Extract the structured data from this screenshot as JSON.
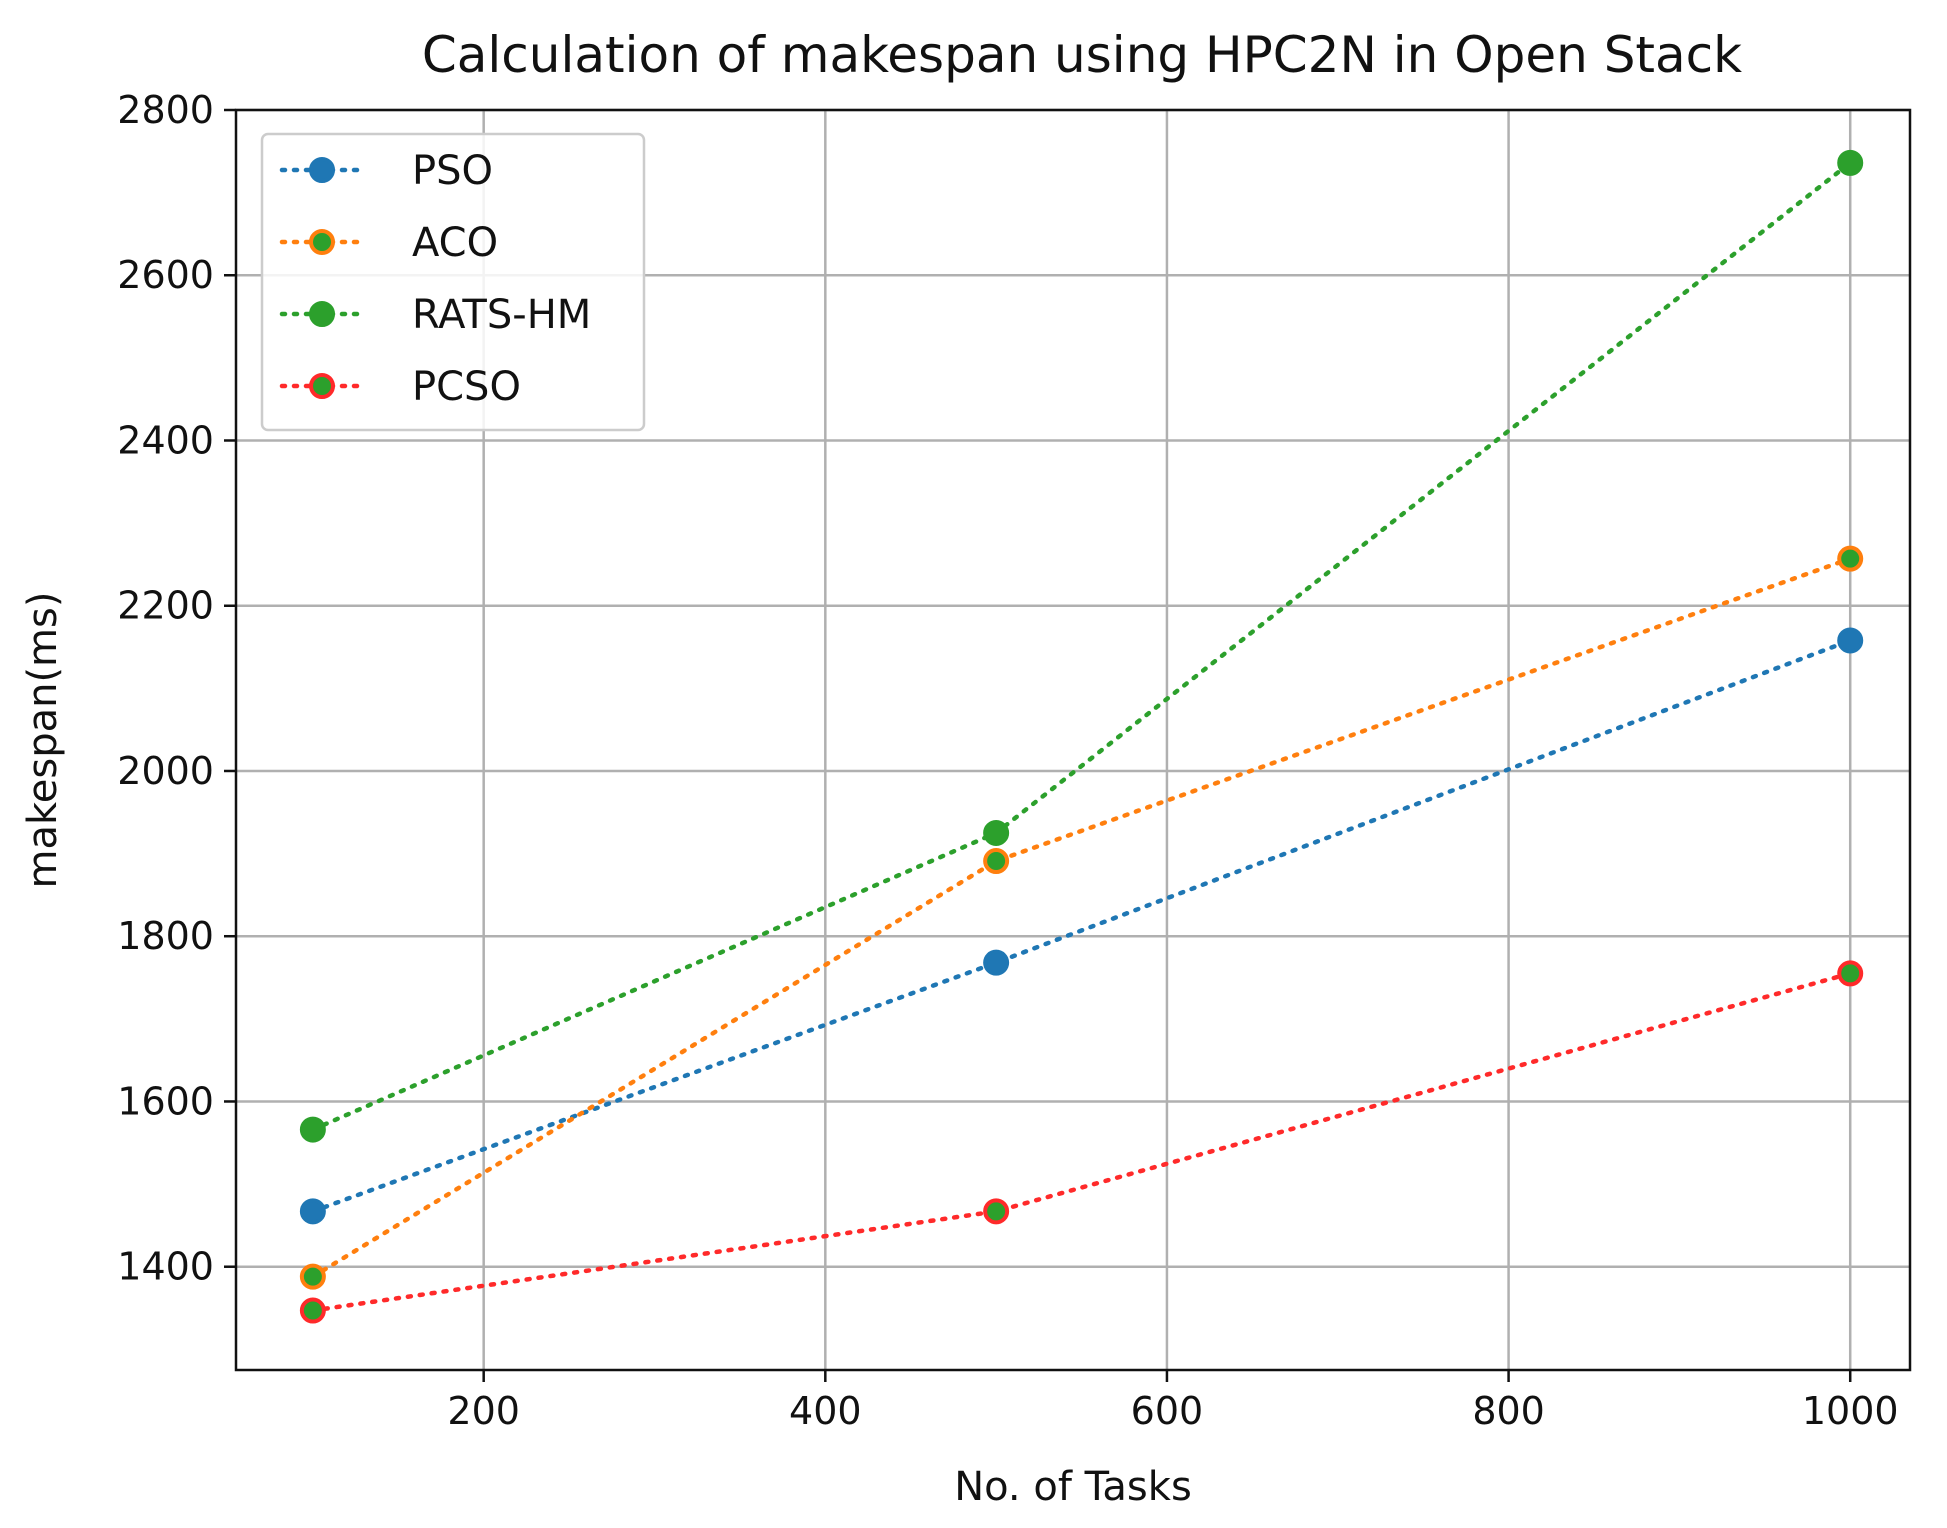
{
  "chart_data": {
    "type": "line",
    "title": "Calculation of makespan using HPC2N in Open Stack",
    "xlabel": "No. of Tasks",
    "ylabel": "makespan(ms)",
    "x": [
      100,
      500,
      1000
    ],
    "xlim": [
      55,
      1035
    ],
    "ylim": [
      1275,
      2800
    ],
    "xticks": [
      200,
      400,
      600,
      800,
      1000
    ],
    "yticks": [
      1400,
      1600,
      1800,
      2000,
      2200,
      2400,
      2600,
      2800
    ],
    "grid": true,
    "legend_position": "top-left",
    "series": [
      {
        "name": "PSO",
        "values": [
          1467,
          1768,
          2158
        ],
        "line_color": "#1f77b4",
        "face_color": "#1f77b4"
      },
      {
        "name": "ACO",
        "values": [
          1388,
          1891,
          2257
        ],
        "line_color": "#ff7f0e",
        "face_color": "#2ca02c"
      },
      {
        "name": "RATS-HM",
        "values": [
          1566,
          1925,
          2736
        ],
        "line_color": "#2ca02c",
        "face_color": "#2ca02c"
      },
      {
        "name": "PCSO",
        "values": [
          1347,
          1467,
          1755
        ],
        "line_color": "#ff2a2a",
        "face_color": "#2ca02c"
      }
    ]
  }
}
